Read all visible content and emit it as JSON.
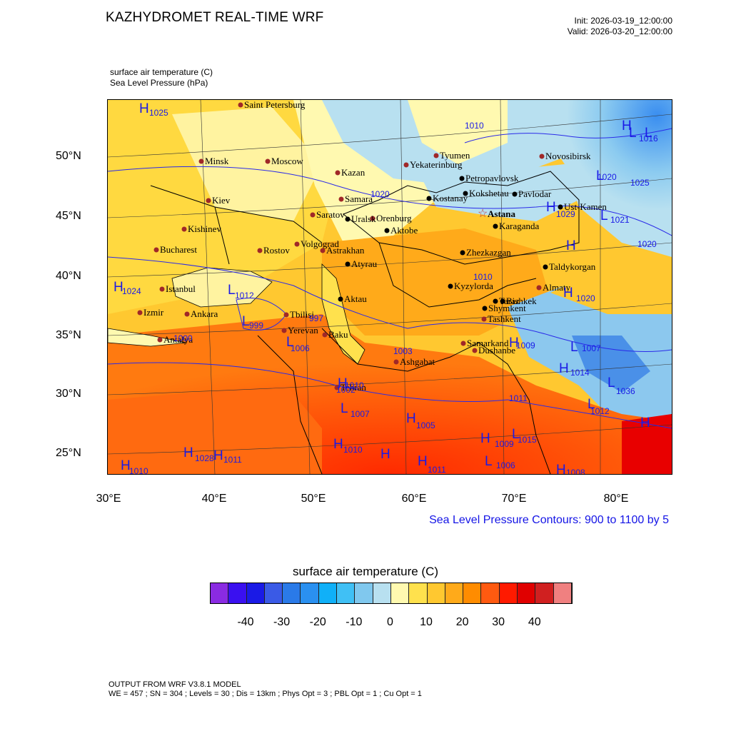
{
  "header": {
    "title": "KAZHYDROMET REAL-TIME WRF",
    "init": "Init: 2026-03-19_12:00:00",
    "valid": "Valid: 2026-03-20_12:00:00",
    "var1": "surface air temperature   (C)",
    "var2": "Sea Level Pressure   (hPa)"
  },
  "axes": {
    "lat_labels": [
      "50°N",
      "45°N",
      "40°N",
      "35°N",
      "30°N",
      "25°N"
    ],
    "lon_labels": [
      "30°E",
      "40°E",
      "50°E",
      "60°E",
      "70°E",
      "80°E"
    ]
  },
  "slp_note": "Sea Level Pressure Contours: 900 to 1100 by 5",
  "colorbar": {
    "title": "surface air temperature  (C)",
    "colors": [
      "#8a2be2",
      "#3a10f0",
      "#1a1ae6",
      "#3a5ae6",
      "#2a7ae8",
      "#2a90f0",
      "#10b0f8",
      "#40c0f5",
      "#80c8ee",
      "#b8e0f0",
      "#fff9b0",
      "#ffe14d",
      "#ffc830",
      "#ffaa1a",
      "#ff8c00",
      "#ff5a10",
      "#ff1a00",
      "#e00000",
      "#d02020",
      "#f08080"
    ],
    "labels": [
      "-40",
      "-30",
      "-20",
      "-10",
      "0",
      "10",
      "20",
      "30",
      "40"
    ]
  },
  "footer": {
    "line1": "OUTPUT FROM WRF V3.8.1 MODEL",
    "line2": "WE = 457 ; SN = 304 ; Levels = 30 ; Dis = 13km ; Phys Opt = 3 ; PBL Opt = 1 ; Cu Opt = 1"
  },
  "cities_red": [
    "Saint Petersburg",
    "Minsk",
    "Moscow",
    "Kazan",
    "Tyumen",
    "Yekaterinburg",
    "Novosibirsk",
    "Kiev",
    "Samara",
    "Saratov",
    "Orenburg",
    "Kishinev",
    "Bucharest",
    "Rostov",
    "Volgograd",
    "Astrakhan",
    "Istanbul",
    "Izmir",
    "Ankara",
    "Antalya",
    "Tbilisi",
    "Yerevan",
    "Baku",
    "Tehran",
    "Ashgabat",
    "Samarkand",
    "Tashkent",
    "Dushanbe",
    "Almaty"
  ],
  "cities_black": [
    "Petropavlovsk",
    "Kostanay",
    "Kokshetau",
    "Pavlodar",
    "Ust-Kamen",
    "Karaganda",
    "Aktobe",
    "Uralsk",
    "Atyrau",
    "Aktau",
    "Zhezkazgan",
    "Kyzylorda",
    "Taraz",
    "Shymkent",
    "Taldykorgan",
    "Bishkek"
  ],
  "capital": "Astana",
  "pressure_centers": [
    "H",
    "L"
  ],
  "pressure_values": [
    "1025",
    "1010",
    "1020",
    "1016",
    "1025",
    "1020",
    "1029",
    "1021",
    "1020",
    "1010",
    "1020",
    "1024",
    "1012",
    "999",
    "997",
    "1006",
    "1000",
    "1003",
    "1010",
    "1002",
    "1007",
    "1005",
    "1010",
    "1011",
    "1012",
    "1009",
    "1015",
    "1007",
    "1014",
    "1036",
    "1009",
    "1028",
    "1011",
    "1010",
    "1011",
    "1006",
    "1008"
  ]
}
